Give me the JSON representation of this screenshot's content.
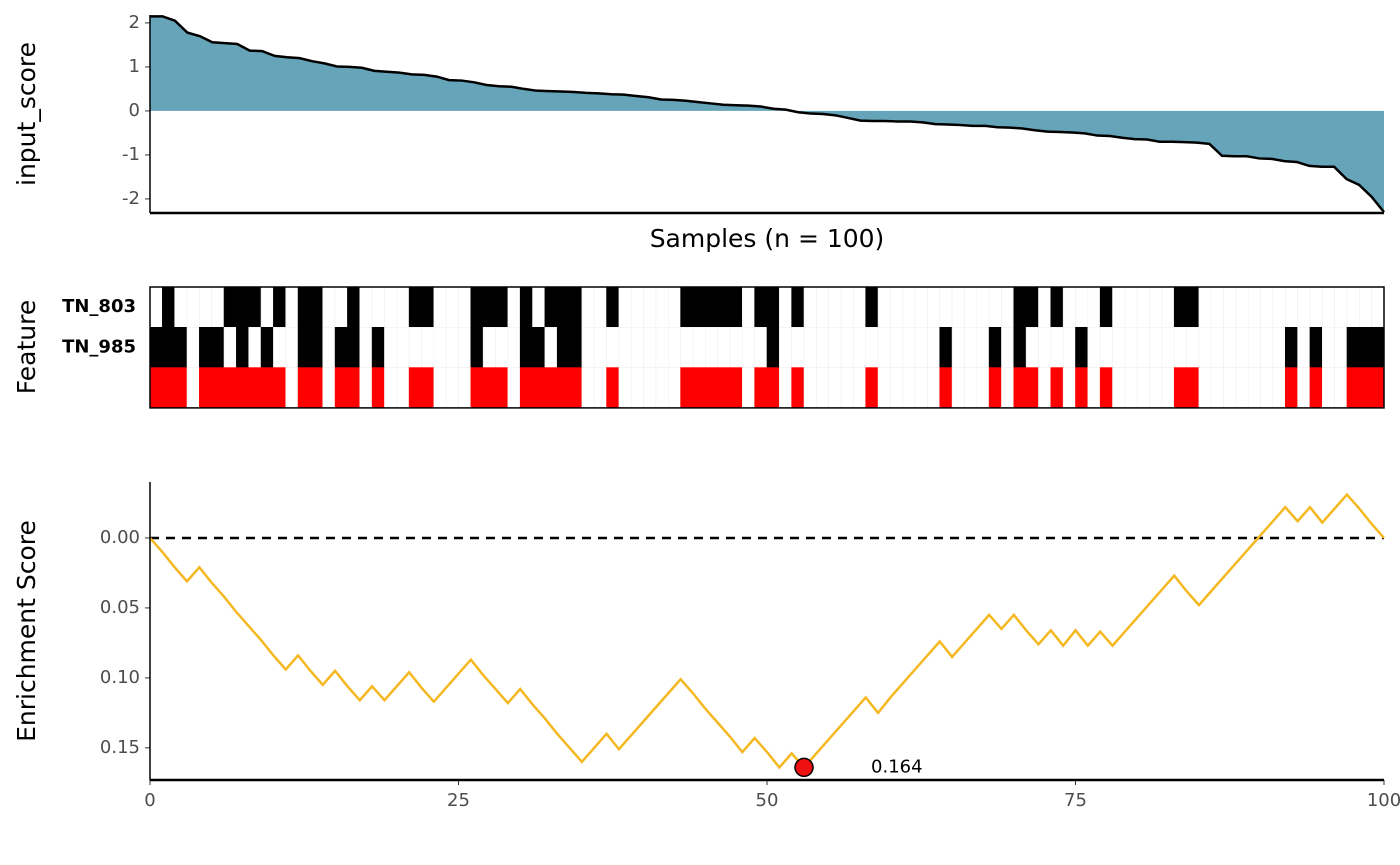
{
  "chart_data": [
    {
      "type": "area",
      "ylabel": "input_score",
      "xlabel": "Samples (n = 100)",
      "color": "#66a5b9",
      "line_color": "#000000",
      "ylim": [
        -2.32,
        2.18
      ],
      "yticks": [
        -2,
        -1,
        0,
        1,
        2
      ],
      "values": [
        2.15,
        2.15,
        2.05,
        1.78,
        1.7,
        1.56,
        1.54,
        1.52,
        1.37,
        1.36,
        1.25,
        1.22,
        1.2,
        1.13,
        1.08,
        1.01,
        1.0,
        0.98,
        0.91,
        0.89,
        0.87,
        0.83,
        0.82,
        0.78,
        0.7,
        0.69,
        0.65,
        0.59,
        0.56,
        0.55,
        0.5,
        0.46,
        0.45,
        0.44,
        0.43,
        0.41,
        0.4,
        0.38,
        0.37,
        0.34,
        0.31,
        0.26,
        0.25,
        0.23,
        0.2,
        0.17,
        0.14,
        0.13,
        0.12,
        0.1,
        0.05,
        0.03,
        -0.03,
        -0.06,
        -0.07,
        -0.1,
        -0.16,
        -0.22,
        -0.23,
        -0.23,
        -0.24,
        -0.24,
        -0.26,
        -0.3,
        -0.31,
        -0.32,
        -0.34,
        -0.34,
        -0.37,
        -0.38,
        -0.4,
        -0.44,
        -0.47,
        -0.48,
        -0.49,
        -0.51,
        -0.56,
        -0.57,
        -0.61,
        -0.64,
        -0.65,
        -0.7,
        -0.7,
        -0.71,
        -0.72,
        -0.75,
        -1.02,
        -1.03,
        -1.03,
        -1.08,
        -1.09,
        -1.14,
        -1.16,
        -1.25,
        -1.27,
        -1.27,
        -1.55,
        -1.68,
        -1.95,
        -2.3
      ]
    },
    {
      "type": "tile",
      "ylabel": "Feature",
      "empty_color": "#ffffff",
      "series": [
        {
          "name": "TN_803",
          "color": "#000000",
          "values": [
            0,
            1,
            0,
            0,
            0,
            0,
            1,
            1,
            1,
            0,
            1,
            0,
            1,
            1,
            0,
            0,
            1,
            0,
            0,
            0,
            0,
            1,
            1,
            0,
            0,
            0,
            1,
            1,
            1,
            0,
            1,
            0,
            1,
            1,
            1,
            0,
            0,
            1,
            0,
            0,
            0,
            0,
            0,
            1,
            1,
            1,
            1,
            1,
            0,
            1,
            1,
            0,
            1,
            0,
            0,
            0,
            0,
            0,
            1,
            0,
            0,
            0,
            0,
            0,
            0,
            0,
            0,
            0,
            0,
            0,
            1,
            1,
            0,
            1,
            0,
            0,
            0,
            1,
            0,
            0,
            0,
            0,
            0,
            1,
            1,
            0,
            0,
            0,
            0,
            0,
            0,
            0,
            0,
            0,
            0,
            0,
            0,
            0,
            0,
            0
          ]
        },
        {
          "name": "TN_985",
          "color": "#000000",
          "values": [
            1,
            1,
            1,
            0,
            1,
            1,
            0,
            1,
            0,
            1,
            0,
            0,
            1,
            1,
            0,
            1,
            1,
            0,
            1,
            0,
            0,
            0,
            0,
            0,
            0,
            0,
            1,
            0,
            0,
            0,
            1,
            1,
            0,
            1,
            1,
            0,
            0,
            0,
            0,
            0,
            0,
            0,
            0,
            0,
            0,
            0,
            0,
            0,
            0,
            0,
            1,
            0,
            0,
            0,
            0,
            0,
            0,
            0,
            0,
            0,
            0,
            0,
            0,
            0,
            1,
            0,
            0,
            0,
            1,
            0,
            1,
            0,
            0,
            0,
            0,
            1,
            0,
            0,
            0,
            0,
            0,
            0,
            0,
            0,
            0,
            0,
            0,
            0,
            0,
            0,
            0,
            0,
            1,
            0,
            1,
            0,
            0,
            1,
            1,
            1
          ]
        },
        {
          "name": null,
          "color": "#ff0000",
          "values": [
            1,
            1,
            1,
            0,
            1,
            1,
            1,
            1,
            1,
            1,
            1,
            0,
            1,
            1,
            0,
            1,
            1,
            0,
            1,
            0,
            0,
            1,
            1,
            0,
            0,
            0,
            1,
            1,
            1,
            0,
            1,
            1,
            1,
            1,
            1,
            0,
            0,
            1,
            0,
            0,
            0,
            0,
            0,
            1,
            1,
            1,
            1,
            1,
            0,
            1,
            1,
            0,
            1,
            0,
            0,
            0,
            0,
            0,
            1,
            0,
            0,
            0,
            0,
            0,
            1,
            0,
            0,
            0,
            1,
            0,
            1,
            1,
            0,
            1,
            0,
            1,
            0,
            1,
            0,
            0,
            0,
            0,
            0,
            1,
            1,
            0,
            0,
            0,
            0,
            0,
            0,
            0,
            1,
            0,
            1,
            0,
            0,
            1,
            1,
            1
          ]
        }
      ]
    },
    {
      "type": "line",
      "ylabel": "Enrichment Score",
      "color": "#f5b820",
      "xlim": [
        0,
        100
      ],
      "xticks": [
        0,
        25,
        50,
        75,
        100
      ],
      "ylim": [
        -0.04,
        0.173
      ],
      "y_reversed": true,
      "yticks": [
        {
          "value": 0,
          "label": "0.00"
        },
        0.05,
        {
          "value": 0.1,
          "label": "0.10"
        },
        0.15
      ],
      "hline": 0,
      "x": [
        0,
        1,
        2,
        3,
        4,
        5,
        6,
        7,
        8,
        9,
        10,
        11,
        12,
        13,
        14,
        15,
        16,
        17,
        18,
        19,
        20,
        21,
        22,
        23,
        24,
        25,
        26,
        27,
        28,
        29,
        30,
        31,
        32,
        33,
        34,
        35,
        36,
        37,
        38,
        39,
        40,
        41,
        42,
        43,
        44,
        45,
        46,
        47,
        48,
        49,
        50,
        51,
        52,
        53,
        54,
        55,
        56,
        57,
        58,
        59,
        60,
        61,
        62,
        63,
        64,
        65,
        66,
        67,
        68,
        69,
        70,
        71,
        72,
        73,
        74,
        75,
        76,
        77,
        78,
        79,
        80,
        81,
        82,
        83,
        84,
        85,
        86,
        87,
        88,
        89,
        90,
        91,
        92,
        93,
        94,
        95,
        96,
        97,
        98,
        99,
        100
      ],
      "values": [
        0,
        0.01,
        0.021,
        0.031,
        0.021,
        0.032,
        0.042,
        0.053,
        0.063,
        0.073,
        0.084,
        0.094,
        0.084,
        0.095,
        0.105,
        0.095,
        0.106,
        0.116,
        0.106,
        0.116,
        0.106,
        0.096,
        0.107,
        0.117,
        0.107,
        0.097,
        0.087,
        0.098,
        0.108,
        0.118,
        0.108,
        0.119,
        0.129,
        0.14,
        0.15,
        0.16,
        0.15,
        0.14,
        0.151,
        0.141,
        0.131,
        0.121,
        0.111,
        0.101,
        0.111,
        0.122,
        0.132,
        0.142,
        0.153,
        0.143,
        0.153,
        0.164,
        0.154,
        0.164,
        0.154,
        0.144,
        0.134,
        0.124,
        0.114,
        0.125,
        0.114,
        0.104,
        0.094,
        0.084,
        0.074,
        0.085,
        0.075,
        0.065,
        0.055,
        0.065,
        0.055,
        0.066,
        0.076,
        0.066,
        0.077,
        0.066,
        0.077,
        0.067,
        0.077,
        0.067,
        0.057,
        0.047,
        0.037,
        0.027,
        0.038,
        0.048,
        0.038,
        0.028,
        0.018,
        0.008,
        -0.002,
        -0.012,
        -0.022,
        -0.012,
        -0.022,
        -0.011,
        -0.021,
        -0.031,
        -0.021,
        -0.01,
        0
      ],
      "marker": {
        "x": 53,
        "y": 0.164,
        "color": "#ee1111"
      }
    }
  ]
}
